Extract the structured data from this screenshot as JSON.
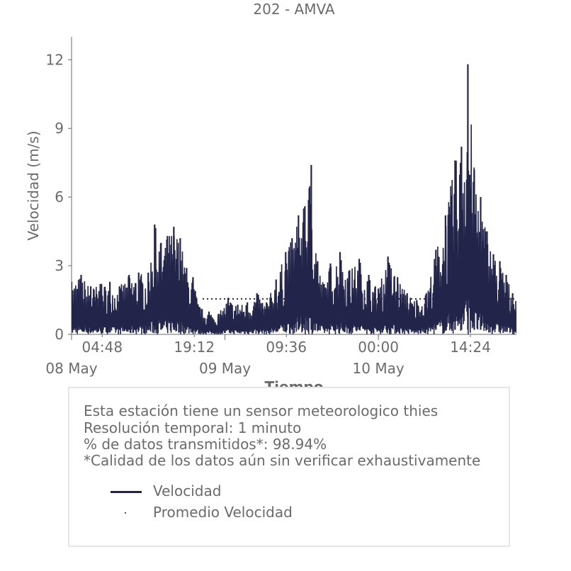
{
  "chart_data": {
    "type": "line",
    "title": "202 - AMVA",
    "xlabel": "Tiempo",
    "ylabel": "Velocidad (m/s)",
    "ylim": [
      0,
      13
    ],
    "yticks": [
      0,
      3,
      6,
      9,
      12
    ],
    "x_major_ticks": [
      "08 May",
      "09 May",
      "10 May"
    ],
    "x_minor_ticks": [
      "04:48",
      "19:12",
      "09:36",
      "00:00",
      "14:24"
    ],
    "xlim": [
      "2024-05-08 00:00",
      "2024-05-10 21:36"
    ],
    "series": [
      {
        "name": "Velocidad",
        "color": "#22244a",
        "style": "solid",
        "x": [
          "05-08 00:00",
          "05-08 01:30",
          "05-08 03:00",
          "05-08 04:30",
          "05-08 06:00",
          "05-08 07:30",
          "05-08 09:00",
          "05-08 10:30",
          "05-08 12:00",
          "05-08 13:00",
          "05-08 14:00",
          "05-08 15:00",
          "05-08 16:00",
          "05-08 17:00",
          "05-08 18:00",
          "05-08 19:00",
          "05-08 20:00",
          "05-08 21:30",
          "05-08 23:00",
          "05-09 00:30",
          "05-09 02:00",
          "05-09 03:30",
          "05-09 05:00",
          "05-09 06:30",
          "05-09 08:00",
          "05-09 09:30",
          "05-09 10:30",
          "05-09 11:30",
          "05-09 12:30",
          "05-09 13:30",
          "05-09 14:30",
          "05-09 15:30",
          "05-09 16:30",
          "05-09 18:00",
          "05-09 19:30",
          "05-09 21:00",
          "05-09 22:30",
          "05-10 00:00",
          "05-10 01:30",
          "05-10 03:00",
          "05-10 04:30",
          "05-10 06:00",
          "05-10 07:30",
          "05-10 09:00",
          "05-10 10:30",
          "05-10 12:00",
          "05-10 13:00",
          "05-10 14:00",
          "05-10 15:00",
          "05-10 16:00",
          "05-10 17:00",
          "05-10 18:00",
          "05-10 19:00",
          "05-10 20:00",
          "05-10 21:00"
        ],
        "y": [
          2.3,
          2.6,
          2.1,
          2.2,
          2.3,
          2.1,
          2.6,
          2.7,
          2.7,
          4.8,
          4.0,
          4.3,
          4.7,
          4.2,
          2.9,
          2.5,
          1.2,
          1.0,
          0.9,
          1.6,
          1.3,
          1.4,
          1.8,
          1.4,
          2.4,
          3.6,
          4.2,
          5.2,
          5.6,
          7.4,
          3.2,
          2.2,
          3.1,
          3.6,
          2.8,
          3.3,
          2.6,
          2.0,
          3.4,
          2.5,
          1.8,
          1.5,
          1.8,
          3.7,
          5.2,
          7.6,
          8.2,
          11.8,
          7.2,
          6.0,
          4.5,
          3.5,
          3.2,
          2.6,
          1.8
        ]
      },
      {
        "name": "Promedio Velocidad",
        "color": "#22244a",
        "style": "dotted",
        "x": [
          "05-08 20:30",
          "05-10 21:36"
        ],
        "y": [
          1.55,
          1.55
        ]
      }
    ],
    "grid": false,
    "legend": "below-plot"
  },
  "info": {
    "line1": "Esta estación tiene un sensor meteorologico thies",
    "line2": "Resolución temporal: 1 minuto",
    "line3": "% de datos transmitidos*: 98.94%",
    "line4": "*Calidad de los datos aún sin verificar exhaustivamente"
  },
  "legend": {
    "item1": "Velocidad",
    "item2": "Promedio Velocidad"
  }
}
